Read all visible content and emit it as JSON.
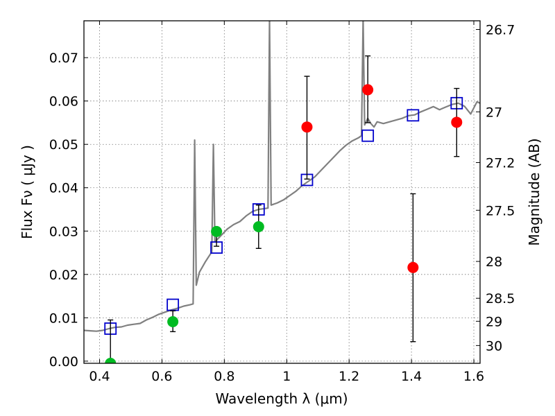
{
  "chart_data": {
    "type": "scatter",
    "title": "",
    "xlabel": "Wavelength  λ (μm)",
    "ylabel": "Flux  Fν  ( μJy )",
    "ylabel_right": "Magnitude (AB)",
    "xlim": [
      0.35,
      1.62
    ],
    "ylim": [
      -0.0005,
      0.0785
    ],
    "grid": true,
    "x_ticks": [
      0.4,
      0.6,
      0.8,
      1.0,
      1.2,
      1.4,
      1.6
    ],
    "x_tick_labels": [
      "0.4",
      "0.6",
      "0.8",
      "1",
      "1.2",
      "1.4",
      "1.6"
    ],
    "y_ticks": [
      0.0,
      0.01,
      0.02,
      0.03,
      0.04,
      0.05,
      0.06,
      0.07
    ],
    "y_tick_labels": [
      "0.00",
      "0.01",
      "0.02",
      "0.03",
      "0.04",
      "0.05",
      "0.06",
      "0.07"
    ],
    "right_ticks": [
      {
        "flux": 0.0765,
        "label": "26.7"
      },
      {
        "flux": 0.0575,
        "label": "27"
      },
      {
        "flux": 0.0458,
        "label": "27.2"
      },
      {
        "flux": 0.0348,
        "label": "27.5"
      },
      {
        "flux": 0.023,
        "label": "28"
      },
      {
        "flux": 0.0145,
        "label": "28.5"
      },
      {
        "flux": 0.0092,
        "label": "29"
      },
      {
        "flux": 0.0036,
        "label": "30"
      }
    ],
    "series": [
      {
        "kind": "line",
        "color": "#808080",
        "points": [
          [
            0.35,
            0.0071
          ],
          [
            0.37,
            0.007
          ],
          [
            0.39,
            0.0069
          ],
          [
            0.41,
            0.0071
          ],
          [
            0.43,
            0.0075
          ],
          [
            0.45,
            0.0078
          ],
          [
            0.47,
            0.0079
          ],
          [
            0.49,
            0.0083
          ],
          [
            0.51,
            0.0085
          ],
          [
            0.53,
            0.0087
          ],
          [
            0.55,
            0.0095
          ],
          [
            0.57,
            0.0101
          ],
          [
            0.59,
            0.0108
          ],
          [
            0.61,
            0.0113
          ],
          [
            0.63,
            0.0118
          ],
          [
            0.65,
            0.0122
          ],
          [
            0.67,
            0.0127
          ],
          [
            0.69,
            0.013
          ],
          [
            0.7,
            0.0132
          ],
          [
            0.705,
            0.051
          ],
          [
            0.71,
            0.0175
          ],
          [
            0.72,
            0.0205
          ],
          [
            0.74,
            0.023
          ],
          [
            0.76,
            0.0252
          ],
          [
            0.765,
            0.05
          ],
          [
            0.77,
            0.0275
          ],
          [
            0.79,
            0.029
          ],
          [
            0.81,
            0.0305
          ],
          [
            0.83,
            0.0315
          ],
          [
            0.85,
            0.0322
          ],
          [
            0.87,
            0.0335
          ],
          [
            0.89,
            0.0345
          ],
          [
            0.91,
            0.035
          ],
          [
            0.93,
            0.0352
          ],
          [
            0.94,
            0.0353
          ],
          [
            0.945,
            0.079
          ],
          [
            0.95,
            0.036
          ],
          [
            0.97,
            0.0365
          ],
          [
            0.99,
            0.0372
          ],
          [
            1.01,
            0.0382
          ],
          [
            1.03,
            0.0392
          ],
          [
            1.05,
            0.0405
          ],
          [
            1.07,
            0.0415
          ],
          [
            1.09,
            0.0425
          ],
          [
            1.11,
            0.044
          ],
          [
            1.13,
            0.0455
          ],
          [
            1.15,
            0.047
          ],
          [
            1.17,
            0.0485
          ],
          [
            1.19,
            0.0498
          ],
          [
            1.21,
            0.0508
          ],
          [
            1.23,
            0.0515
          ],
          [
            1.24,
            0.052
          ],
          [
            1.245,
            0.079
          ],
          [
            1.25,
            0.0545
          ],
          [
            1.26,
            0.056
          ],
          [
            1.27,
            0.0548
          ],
          [
            1.28,
            0.054
          ],
          [
            1.29,
            0.0552
          ],
          [
            1.31,
            0.0548
          ],
          [
            1.33,
            0.0552
          ],
          [
            1.35,
            0.0556
          ],
          [
            1.37,
            0.056
          ],
          [
            1.39,
            0.0566
          ],
          [
            1.41,
            0.0568
          ],
          [
            1.43,
            0.0575
          ],
          [
            1.45,
            0.0581
          ],
          [
            1.47,
            0.0587
          ],
          [
            1.49,
            0.058
          ],
          [
            1.51,
            0.0586
          ],
          [
            1.53,
            0.0592
          ],
          [
            1.55,
            0.0595
          ],
          [
            1.57,
            0.0588
          ],
          [
            1.59,
            0.057
          ],
          [
            1.61,
            0.0598
          ],
          [
            1.62,
            0.0595
          ]
        ]
      },
      {
        "kind": "squares",
        "color": "#0000cc",
        "points": [
          [
            0.435,
            0.0075
          ],
          [
            0.635,
            0.013
          ],
          [
            0.775,
            0.0262
          ],
          [
            0.91,
            0.035
          ],
          [
            1.065,
            0.0418
          ],
          [
            1.26,
            0.052
          ],
          [
            1.405,
            0.0567
          ],
          [
            1.545,
            0.0595
          ]
        ]
      },
      {
        "kind": "circles",
        "color": "#00bb22",
        "points": [
          [
            0.435,
            -0.0005
          ],
          [
            0.635,
            0.0091
          ],
          [
            0.775,
            0.0299
          ],
          [
            0.91,
            0.031
          ]
        ],
        "err": [
          [
            -0.0005,
            0.0095
          ],
          [
            0.0068,
            0.0116
          ],
          [
            0.0265,
            0.0298
          ],
          [
            0.026,
            0.036
          ]
        ]
      },
      {
        "kind": "circles",
        "color": "#ff0000",
        "points": [
          [
            1.065,
            0.054
          ],
          [
            1.26,
            0.0626
          ],
          [
            1.405,
            0.0216
          ],
          [
            1.545,
            0.0551
          ]
        ],
        "err": [
          [
            0.042,
            0.0657
          ],
          [
            0.055,
            0.0704
          ],
          [
            0.0045,
            0.0386
          ],
          [
            0.0472,
            0.0629
          ]
        ]
      }
    ]
  }
}
